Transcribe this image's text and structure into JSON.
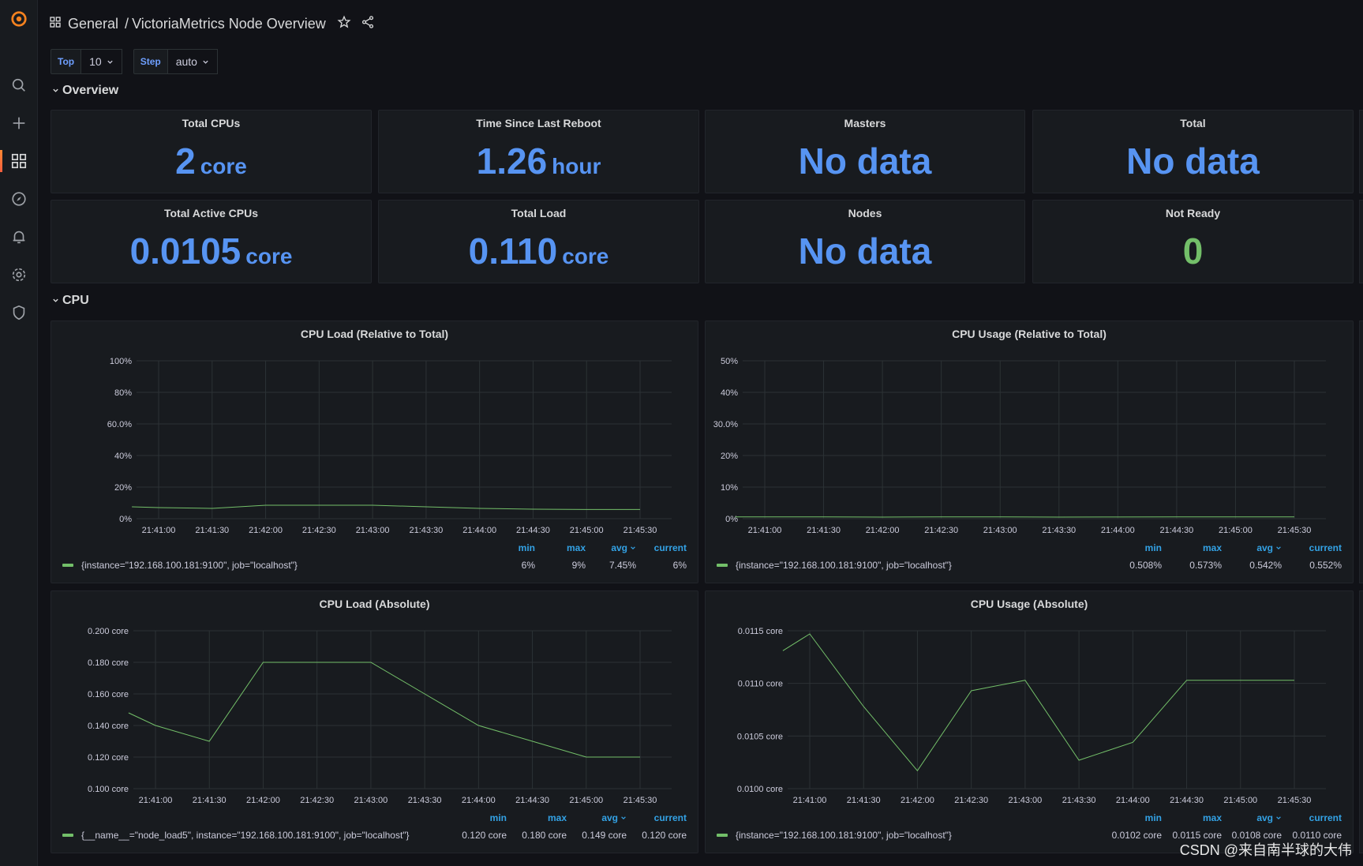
{
  "breadcrumb": {
    "folder": "General",
    "separator": "/",
    "dashboard": "VictoriaMetrics Node Overview"
  },
  "variables": [
    {
      "label": "Top",
      "value": "10"
    },
    {
      "label": "Step",
      "value": "auto"
    }
  ],
  "rows": {
    "overview": "Overview",
    "cpu": "CPU"
  },
  "stats": [
    {
      "title": "Total CPUs",
      "value": "2",
      "unit": "core"
    },
    {
      "title": "Time Since Last Reboot",
      "value": "1.26",
      "unit": "hour"
    },
    {
      "title": "Masters",
      "value": "No data",
      "unit": ""
    },
    {
      "title": "Total",
      "value": "No data",
      "unit": ""
    },
    {
      "title": "Total Active CPUs",
      "value": "0.0105",
      "unit": "core"
    },
    {
      "title": "Total Load",
      "value": "0.110",
      "unit": "core"
    },
    {
      "title": "Nodes",
      "value": "No data",
      "unit": ""
    },
    {
      "title": "Not Ready",
      "value": "0",
      "unit": "",
      "color": "#73bf69"
    }
  ],
  "chart_data": [
    {
      "type": "line",
      "title": "CPU Load (Relative to Total)",
      "x": [
        "21:40:45",
        "21:41:00",
        "21:41:30",
        "21:42:00",
        "21:42:30",
        "21:43:00",
        "21:43:30",
        "21:44:00",
        "21:44:30",
        "21:45:00",
        "21:45:30"
      ],
      "xticks": [
        "21:41:00",
        "21:41:30",
        "21:42:00",
        "21:42:30",
        "21:43:00",
        "21:43:30",
        "21:44:00",
        "21:44:30",
        "21:45:00",
        "21:45:30"
      ],
      "yticks": [
        "0%",
        "20%",
        "40%",
        "60.0%",
        "80%",
        "100%"
      ],
      "ylim": [
        0,
        100
      ],
      "series": [
        {
          "name": "{instance=\"192.168.100.181:9100\", job=\"localhost\"}",
          "values": [
            7.5,
            7,
            6.5,
            8.5,
            8.5,
            8.5,
            7.5,
            6.5,
            6,
            5.8,
            5.8
          ]
        }
      ],
      "legend": {
        "min": "6%",
        "max": "9%",
        "avg": "7.45%",
        "current": "6%"
      }
    },
    {
      "type": "line",
      "title": "CPU Usage (Relative to Total)",
      "x": [
        "21:40:45",
        "21:41:00",
        "21:41:30",
        "21:42:00",
        "21:42:30",
        "21:43:00",
        "21:43:30",
        "21:44:00",
        "21:44:30",
        "21:45:00",
        "21:45:30"
      ],
      "xticks": [
        "21:41:00",
        "21:41:30",
        "21:42:00",
        "21:42:30",
        "21:43:00",
        "21:43:30",
        "21:44:00",
        "21:44:30",
        "21:45:00",
        "21:45:30"
      ],
      "yticks": [
        "0%",
        "10%",
        "20%",
        "30.0%",
        "40%",
        "50%"
      ],
      "ylim": [
        0,
        50
      ],
      "series": [
        {
          "name": "{instance=\"192.168.100.181:9100\", job=\"localhost\"}",
          "values": [
            0.55,
            0.57,
            0.56,
            0.51,
            0.55,
            0.56,
            0.51,
            0.52,
            0.55,
            0.55,
            0.55
          ]
        }
      ],
      "legend": {
        "min": "0.508%",
        "max": "0.573%",
        "avg": "0.542%",
        "current": "0.552%"
      }
    },
    {
      "type": "line",
      "title": "CPU Load (Absolute)",
      "x": [
        "21:40:45",
        "21:41:00",
        "21:41:30",
        "21:42:00",
        "21:42:30",
        "21:43:00",
        "21:43:30",
        "21:44:00",
        "21:44:30",
        "21:45:00",
        "21:45:30"
      ],
      "xticks": [
        "21:41:00",
        "21:41:30",
        "21:42:00",
        "21:42:30",
        "21:43:00",
        "21:43:30",
        "21:44:00",
        "21:44:30",
        "21:45:00",
        "21:45:30"
      ],
      "yticks": [
        "0.100 core",
        "0.120 core",
        "0.140 core",
        "0.160 core",
        "0.180 core",
        "0.200 core"
      ],
      "ylim": [
        0.1,
        0.2
      ],
      "series": [
        {
          "name": "{__name__=\"node_load5\", instance=\"192.168.100.181:9100\", job=\"localhost\"}",
          "values": [
            0.148,
            0.14,
            0.13,
            0.18,
            0.18,
            0.18,
            0.16,
            0.14,
            0.13,
            0.12,
            0.12
          ]
        }
      ],
      "legend": {
        "min": "0.120 core",
        "max": "0.180 core",
        "avg": "0.149 core",
        "current": "0.120 core"
      }
    },
    {
      "type": "line",
      "title": "CPU Usage (Absolute)",
      "x": [
        "21:40:45",
        "21:41:00",
        "21:41:30",
        "21:42:00",
        "21:42:30",
        "21:43:00",
        "21:43:30",
        "21:44:00",
        "21:44:30",
        "21:45:00",
        "21:45:30"
      ],
      "xticks": [
        "21:41:00",
        "21:41:30",
        "21:42:00",
        "21:42:30",
        "21:43:00",
        "21:43:30",
        "21:44:00",
        "21:44:30",
        "21:45:00",
        "21:45:30"
      ],
      "yticks": [
        "0.0100 core",
        "0.0105 core",
        "0.0110 core",
        "0.0115 core"
      ],
      "ylim": [
        0.01,
        0.0115
      ],
      "series": [
        {
          "name": "{instance=\"192.168.100.181:9100\", job=\"localhost\"}",
          "values": [
            0.01131,
            0.01147,
            0.01078,
            0.01017,
            0.01093,
            0.01103,
            0.01027,
            0.01044,
            0.01103,
            0.01103,
            0.01103
          ]
        }
      ],
      "legend": {
        "min": "0.0102 core",
        "max": "0.0115 core",
        "avg": "0.0108 core",
        "current": "0.0110 core"
      }
    }
  ],
  "legend_headers": {
    "min": "min",
    "max": "max",
    "avg": "avg",
    "current": "current"
  },
  "watermark": "CSDN @来自南半球的大伟",
  "colors": {
    "series": "#73bf69",
    "stat": "#5794f2",
    "grid": "#2c3235",
    "background": "#111217",
    "panel": "#181b1f"
  },
  "icons": [
    "grafana-logo-icon",
    "search-icon",
    "plus-icon",
    "dashboards-icon",
    "explore-icon",
    "bell-icon",
    "gear-icon",
    "shield-icon",
    "star-icon",
    "share-icon",
    "chevron-down-icon"
  ]
}
